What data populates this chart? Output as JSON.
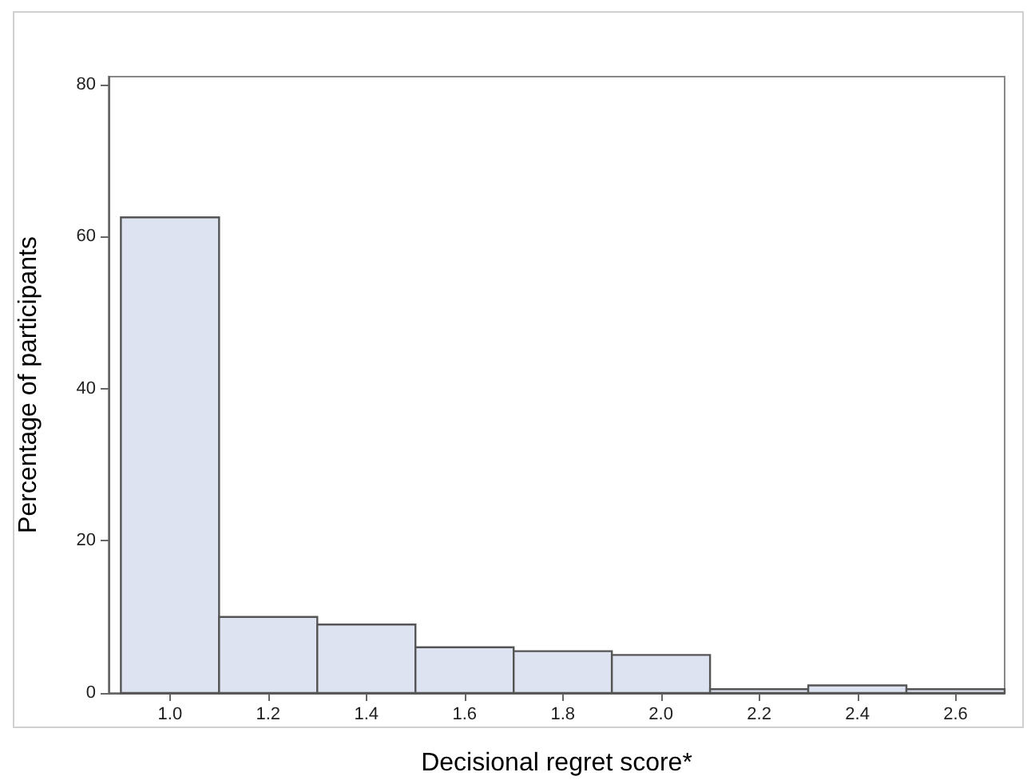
{
  "chart_data": {
    "type": "histogram",
    "xlabel": "Decisional regret score*",
    "ylabel": "Percentage of participants",
    "bins": [
      0.9,
      1.1,
      1.3,
      1.5,
      1.7,
      1.9,
      2.1,
      2.3,
      2.5,
      2.7
    ],
    "values": [
      62.5,
      10,
      9,
      6,
      5.5,
      5,
      0.5,
      1,
      0.5
    ],
    "color": "#dde3f1",
    "xlim": [
      0.875,
      2.7
    ],
    "xticks": [
      {
        "value": 1.0,
        "label": "1.0"
      },
      {
        "value": 1.2,
        "label": "1.2"
      },
      {
        "value": 1.4,
        "label": "1.4"
      },
      {
        "value": 1.6,
        "label": "1.6"
      },
      {
        "value": 1.8,
        "label": "1.8"
      },
      {
        "value": 2.0,
        "label": "2.0"
      },
      {
        "value": 2.2,
        "label": "2.2"
      },
      {
        "value": 2.4,
        "label": "2.4"
      },
      {
        "value": 2.6,
        "label": "2.6"
      }
    ],
    "ylim": [
      0,
      81
    ],
    "yticks": [
      0,
      20,
      40,
      60,
      80
    ],
    "grid": false
  }
}
